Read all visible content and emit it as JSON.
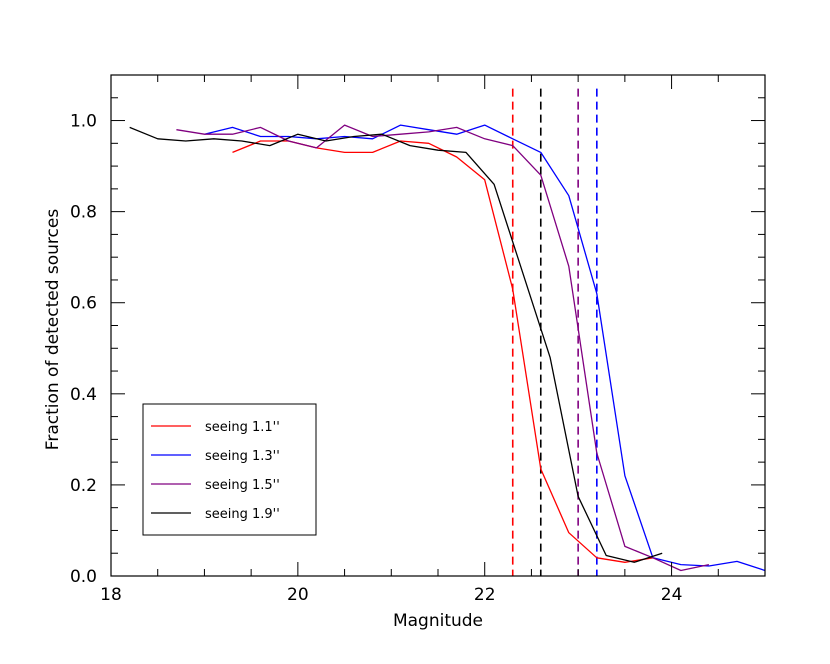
{
  "chart_data": {
    "type": "line",
    "xlabel": "Magnitude",
    "ylabel": "Fraction of detected sources",
    "xlim": [
      18,
      25
    ],
    "ylim": [
      0,
      1.1
    ],
    "x_ticks": [
      18,
      20,
      22,
      24
    ],
    "y_ticks": [
      0.0,
      0.2,
      0.4,
      0.6,
      0.8,
      1.0
    ],
    "x_tick_labels": [
      "18",
      "20",
      "22",
      "24"
    ],
    "y_tick_labels": [
      "0.0",
      "0.2",
      "0.4",
      "0.6",
      "0.8",
      "1.0"
    ],
    "x_minor_step": 0.5,
    "y_minor_step": 0.05,
    "grid": false,
    "legend_position": "bottom-left",
    "series": [
      {
        "name": "seeing 1.1''",
        "color": "#ff0000",
        "x": [
          19.3,
          19.6,
          19.9,
          20.2,
          20.5,
          20.8,
          21.1,
          21.4,
          21.7,
          22.0,
          22.3,
          22.6,
          22.9,
          23.2,
          23.5,
          23.8
        ],
        "y": [
          0.93,
          0.955,
          0.955,
          0.94,
          0.93,
          0.93,
          0.955,
          0.95,
          0.92,
          0.87,
          0.63,
          0.235,
          0.095,
          0.04,
          0.03,
          0.04
        ]
      },
      {
        "name": "seeing 1.3''",
        "color": "#0000ff",
        "x": [
          19.0,
          19.3,
          19.6,
          19.9,
          20.2,
          20.5,
          20.8,
          21.1,
          21.4,
          21.7,
          22.0,
          22.3,
          22.6,
          22.9,
          23.2,
          23.5,
          23.8,
          24.1,
          24.4,
          24.7,
          25.0
        ],
        "y": [
          0.97,
          0.985,
          0.965,
          0.965,
          0.96,
          0.965,
          0.96,
          0.99,
          0.98,
          0.97,
          0.99,
          0.96,
          0.93,
          0.835,
          0.62,
          0.22,
          0.04,
          0.025,
          0.022,
          0.032,
          0.012
        ]
      },
      {
        "name": "seeing 1.5''",
        "color": "#800080",
        "x": [
          18.7,
          19.0,
          19.3,
          19.6,
          19.9,
          20.2,
          20.5,
          20.8,
          21.1,
          21.4,
          21.7,
          22.0,
          22.3,
          22.6,
          22.9,
          23.2,
          23.5,
          23.8,
          24.1,
          24.4
        ],
        "y": [
          0.98,
          0.97,
          0.97,
          0.985,
          0.955,
          0.94,
          0.99,
          0.965,
          0.97,
          0.975,
          0.985,
          0.96,
          0.945,
          0.88,
          0.68,
          0.27,
          0.065,
          0.04,
          0.012,
          0.025
        ]
      },
      {
        "name": "seeing 1.9''",
        "color": "#000000",
        "x": [
          18.2,
          18.5,
          18.8,
          19.1,
          19.4,
          19.7,
          20.0,
          20.3,
          20.6,
          20.9,
          21.2,
          21.5,
          21.8,
          22.1,
          22.4,
          22.7,
          23.0,
          23.3,
          23.6,
          23.9
        ],
        "y": [
          0.985,
          0.96,
          0.955,
          0.96,
          0.955,
          0.945,
          0.97,
          0.955,
          0.965,
          0.97,
          0.945,
          0.935,
          0.93,
          0.86,
          0.67,
          0.48,
          0.175,
          0.045,
          0.03,
          0.05
        ]
      }
    ],
    "vlines": [
      {
        "x": 22.3,
        "color": "#ff0000"
      },
      {
        "x": 22.6,
        "color": "#000000"
      },
      {
        "x": 23.0,
        "color": "#800080"
      },
      {
        "x": 23.2,
        "color": "#0000ff"
      }
    ]
  }
}
